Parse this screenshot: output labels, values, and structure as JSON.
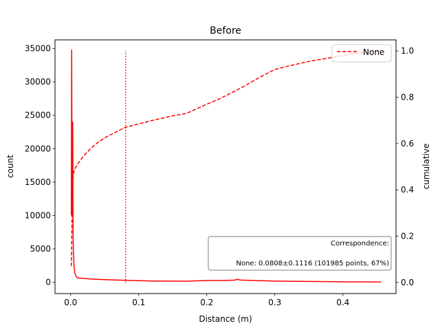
{
  "chart_data": {
    "type": "line",
    "title": "Before",
    "xlabel": "Distance (m)",
    "ylabel": "count",
    "y2label": "cumulative",
    "xlim": [
      -0.023,
      0.478
    ],
    "ylim": [
      -1700,
      36300
    ],
    "y2lim": [
      -0.048,
      1.048
    ],
    "x_ticks": [
      0.0,
      0.1,
      0.2,
      0.3,
      0.4
    ],
    "x_tick_labels": [
      "0.0",
      "0.1",
      "0.2",
      "0.3",
      "0.4"
    ],
    "y_ticks": [
      0,
      5000,
      10000,
      15000,
      20000,
      25000,
      30000,
      35000
    ],
    "y_tick_labels": [
      "0",
      "5000",
      "10000",
      "15000",
      "20000",
      "25000",
      "30000",
      "35000"
    ],
    "y2_ticks": [
      0.0,
      0.2,
      0.4,
      0.6,
      0.8,
      1.0
    ],
    "y2_tick_labels": [
      "0.0",
      "0.2",
      "0.4",
      "0.6",
      "0.8",
      "1.0"
    ],
    "grid": false,
    "legend": {
      "placement": "top-right",
      "entries": [
        "None"
      ]
    },
    "color": "#ff0000",
    "series": [
      {
        "name": "None",
        "axis": "left",
        "style": "solid",
        "x": [
          0.001,
          0.0015,
          0.002,
          0.0025,
          0.003,
          0.0035,
          0.004,
          0.005,
          0.006,
          0.008,
          0.01,
          0.02,
          0.03,
          0.05,
          0.07,
          0.09,
          0.12,
          0.15,
          0.17,
          0.2,
          0.22,
          0.24,
          0.245,
          0.25,
          0.27,
          0.3,
          0.35,
          0.4,
          0.456
        ],
        "y": [
          10000,
          34800,
          18000,
          10000,
          24000,
          8000,
          4500,
          2400,
          1400,
          900,
          650,
          560,
          480,
          380,
          320,
          250,
          180,
          170,
          150,
          260,
          260,
          310,
          420,
          320,
          260,
          170,
          110,
          60,
          40
        ]
      },
      {
        "name": "None",
        "axis": "right",
        "style": "dashed",
        "x": [
          0.001,
          0.0015,
          0.002,
          0.003,
          0.004,
          0.006,
          0.01,
          0.02,
          0.03,
          0.04,
          0.05,
          0.06,
          0.07,
          0.08,
          0.1,
          0.12,
          0.15,
          0.17,
          0.2,
          0.22,
          0.25,
          0.28,
          0.3,
          0.32,
          0.35,
          0.38,
          0.4,
          0.42,
          0.456
        ],
        "y": [
          0.07,
          0.15,
          0.3,
          0.43,
          0.47,
          0.49,
          0.51,
          0.55,
          0.58,
          0.605,
          0.625,
          0.64,
          0.655,
          0.67,
          0.685,
          0.7,
          0.72,
          0.73,
          0.77,
          0.795,
          0.84,
          0.89,
          0.92,
          0.935,
          0.955,
          0.97,
          0.98,
          0.99,
          1.0
        ]
      }
    ],
    "reference_line": {
      "x": 0.0808,
      "y_range": [
        0,
        1.0
      ],
      "style": "dotted"
    },
    "annotation": {
      "title": "Correspondence:",
      "text": "None: 0.0808±0.1116 (101985 points, 67%)"
    }
  }
}
